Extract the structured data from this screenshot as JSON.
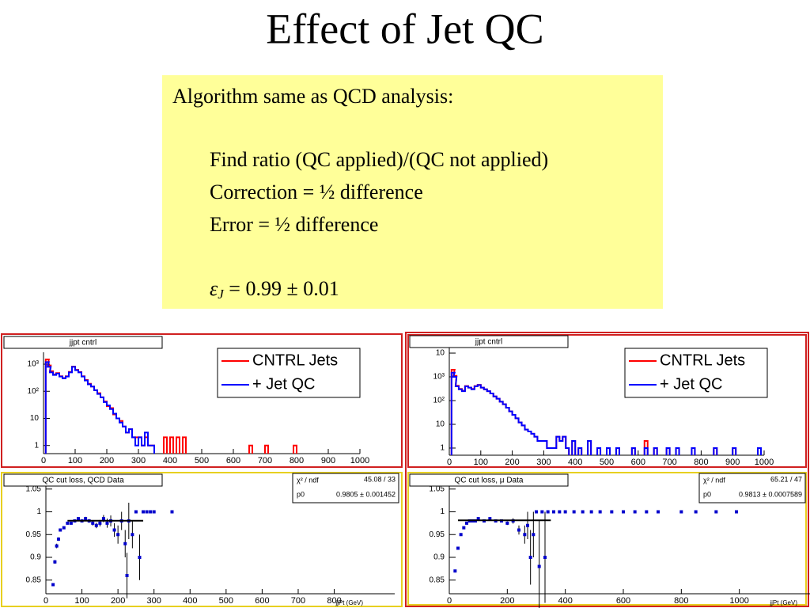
{
  "title": "Effect of Jet QC",
  "textbox": {
    "lines": [
      "Algorithm same as QCD analysis:",
      "Find ratio (QC applied)/(QC not applied)",
      "Correction = ½ difference",
      "Error = ½ difference"
    ],
    "result": {
      "symbol": "ε",
      "subscript": "J",
      "text": " = 0.99 ± 0.01"
    }
  },
  "chart_data": [
    {
      "type": "line",
      "title": "jjpt cntrl",
      "log_y": true,
      "legend": "top-right",
      "xlim": [
        0,
        1000
      ],
      "xticks": [
        0,
        100,
        200,
        300,
        400,
        500,
        600,
        700,
        800,
        900,
        1000
      ],
      "ylim": [
        0.5,
        2750
      ],
      "yticks": [
        1,
        10,
        {
          "value": 100,
          "label": "10²"
        },
        {
          "value": 1000,
          "label": "10³"
        }
      ],
      "x": [
        12,
        18,
        25,
        35,
        45,
        55,
        65,
        75,
        85,
        95,
        105,
        115,
        125,
        135,
        145,
        155,
        165,
        175,
        185,
        195,
        205,
        215,
        225,
        235,
        245,
        255,
        265,
        275,
        285,
        295,
        305,
        315,
        325,
        335,
        345,
        385,
        405,
        425,
        445,
        655,
        705,
        795
      ],
      "series": [
        {
          "name": "CNTRL Jets",
          "color": "#ff0000",
          "values": [
            1500,
            900,
            550,
            420,
            470,
            360,
            310,
            360,
            520,
            820,
            620,
            510,
            360,
            260,
            190,
            150,
            110,
            85,
            60,
            42,
            28,
            24,
            14,
            10,
            8,
            5,
            3,
            4,
            2,
            2,
            2,
            1,
            2,
            1,
            1,
            2,
            2,
            2,
            2,
            1,
            1,
            1
          ]
        },
        {
          "name": "+ Jet QC",
          "color": "#0000ff",
          "values": [
            1200,
            800,
            500,
            400,
            450,
            350,
            300,
            350,
            500,
            800,
            600,
            500,
            350,
            250,
            180,
            150,
            110,
            80,
            60,
            40,
            30,
            22,
            15,
            10,
            7,
            5,
            3,
            4,
            2,
            1,
            2,
            1,
            3,
            1,
            1,
            null,
            null,
            null,
            null,
            null,
            null,
            null
          ]
        }
      ]
    },
    {
      "type": "line",
      "title": "jjpt cntrl",
      "log_y": true,
      "legend": "top-right",
      "xlim": [
        0,
        1000
      ],
      "xticks": [
        0,
        100,
        200,
        300,
        400,
        500,
        600,
        700,
        800,
        900,
        1000
      ],
      "ylim": [
        0.5,
        20000
      ],
      "yticks": [
        1,
        10,
        {
          "value": 100,
          "label": "10²"
        },
        {
          "value": 1000,
          "label": "10³"
        },
        {
          "value": 10000,
          "label": "10"
        }
      ],
      "x": [
        12,
        18,
        25,
        35,
        45,
        55,
        65,
        75,
        85,
        95,
        105,
        115,
        125,
        135,
        145,
        155,
        165,
        175,
        185,
        195,
        205,
        215,
        225,
        235,
        245,
        255,
        265,
        275,
        285,
        295,
        305,
        315,
        325,
        335,
        345,
        355,
        365,
        375,
        395,
        415,
        445,
        475,
        505,
        535,
        585,
        625,
        655,
        695,
        725,
        775,
        845,
        905,
        985
      ],
      "series": [
        {
          "name": "CNTRL Jets",
          "color": "#ff0000",
          "values": [
            2000,
            1100,
            420,
            310,
            260,
            410,
            350,
            310,
            410,
            460,
            350,
            300,
            250,
            200,
            150,
            120,
            90,
            70,
            50,
            35,
            25,
            18,
            12,
            9,
            6,
            5,
            4,
            3,
            2,
            2,
            2,
            1,
            1,
            1,
            3,
            2,
            3,
            1,
            2,
            1,
            2,
            1,
            1,
            1,
            1,
            2,
            1,
            1,
            1,
            1,
            1,
            1,
            1
          ]
        },
        {
          "name": "+ Jet QC",
          "color": "#0000ff",
          "values": [
            1500,
            1000,
            400,
            300,
            250,
            400,
            350,
            300,
            400,
            450,
            350,
            300,
            250,
            200,
            150,
            120,
            90,
            70,
            50,
            35,
            25,
            18,
            12,
            9,
            6,
            5,
            4,
            3,
            2,
            2,
            2,
            1,
            1,
            1,
            3,
            2,
            3,
            1,
            2,
            1,
            2,
            1,
            1,
            1,
            1,
            1,
            1,
            1,
            1,
            1,
            1,
            1,
            1
          ]
        }
      ]
    },
    {
      "type": "scatter",
      "title": "QC cut loss,  QCD Data",
      "xlabel": "jjPt (GeV)",
      "color": "#0000cc",
      "xlim": [
        0,
        880
      ],
      "xticks": [
        0,
        100,
        200,
        300,
        400,
        500,
        600,
        700,
        800
      ],
      "ylim": [
        0.82,
        1.06
      ],
      "yticks": [
        0.85,
        0.9,
        0.95,
        1,
        1.05
      ],
      "x": [
        20,
        25,
        30,
        35,
        40,
        50,
        60,
        70,
        80,
        90,
        100,
        110,
        120,
        130,
        140,
        150,
        160,
        170,
        180,
        190,
        200,
        210,
        220,
        225,
        230,
        240,
        250,
        260,
        270,
        280,
        290,
        300,
        350
      ],
      "values": [
        0.84,
        0.89,
        0.925,
        0.94,
        0.96,
        0.965,
        0.975,
        0.975,
        0.98,
        0.985,
        0.98,
        0.985,
        0.98,
        0.975,
        0.97,
        0.975,
        0.985,
        0.975,
        0.98,
        0.96,
        0.95,
        0.98,
        0.93,
        0.86,
        0.98,
        0.95,
        1,
        0.9,
        1,
        1,
        1,
        1,
        1
      ],
      "errors": [
        0.002,
        0.004,
        0.005,
        0.004,
        0.003,
        0.003,
        0.003,
        0.003,
        0.003,
        0.003,
        0.003,
        0.004,
        0.004,
        0.005,
        0.006,
        0.007,
        0.008,
        0.01,
        0.012,
        0.015,
        0.02,
        0.02,
        0.03,
        0.05,
        0.04,
        0.03,
        0,
        0.05,
        0,
        0,
        0,
        0,
        0
      ],
      "fit": {
        "chi2_label": "χ² / ndf",
        "chi2": "45.08 / 33",
        "param": "p0",
        "value": 0.9805,
        "value_label": "0.9805 ± 0.001452",
        "xrange": [
          60,
          270
        ]
      }
    },
    {
      "type": "scatter",
      "title": "QC cut loss,    μ Data",
      "xlabel": "jjPt (GeV)",
      "color": "#0000cc",
      "xlim": [
        0,
        1200
      ],
      "xticks": [
        0,
        200,
        400,
        600,
        800,
        1000
      ],
      "ylim": [
        0.82,
        1.06
      ],
      "yticks": [
        0.85,
        0.9,
        0.95,
        1,
        1.05
      ],
      "x": [
        20,
        30,
        40,
        50,
        60,
        70,
        80,
        90,
        100,
        120,
        140,
        160,
        180,
        200,
        220,
        240,
        260,
        270,
        280,
        290,
        300,
        310,
        320,
        330,
        340,
        360,
        380,
        400,
        430,
        460,
        490,
        520,
        560,
        600,
        640,
        680,
        720,
        800,
        850,
        920,
        990
      ],
      "values": [
        0.87,
        0.92,
        0.95,
        0.965,
        0.975,
        0.98,
        0.98,
        0.98,
        0.985,
        0.98,
        0.985,
        0.98,
        0.98,
        0.975,
        0.98,
        0.96,
        0.95,
        0.97,
        0.9,
        0.95,
        1,
        0.88,
        1,
        0.9,
        1,
        1,
        1,
        1,
        1,
        1,
        1,
        1,
        1,
        1,
        1,
        1,
        1,
        1,
        1,
        1,
        1
      ],
      "errors": [
        0.003,
        0.003,
        0.002,
        0.002,
        0.002,
        0.002,
        0.002,
        0.002,
        0.002,
        0.002,
        0.002,
        0.003,
        0.003,
        0.004,
        0.006,
        0.01,
        0.02,
        0.03,
        0.06,
        0.05,
        0,
        0.1,
        0,
        0.1,
        0,
        0,
        0,
        0,
        0,
        0,
        0,
        0,
        0,
        0,
        0,
        0,
        0,
        0,
        0,
        0,
        0
      ],
      "fit": {
        "chi2_label": "χ² / ndf",
        "chi2": "65.21 / 47",
        "param": "p0",
        "value": 0.9813,
        "value_label": "0.9813 ± 0.0007589",
        "xrange": [
          30,
          350
        ]
      }
    }
  ]
}
